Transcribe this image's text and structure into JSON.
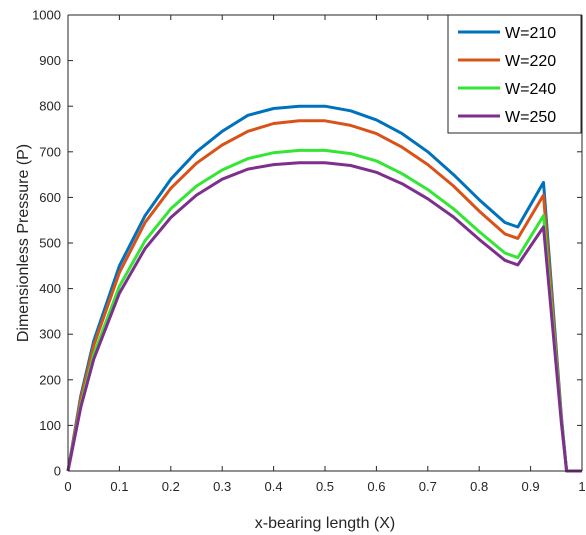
{
  "chart_data": {
    "type": "line",
    "title": "",
    "xlabel": "x-bearing length (X)",
    "ylabel": "Dimensionless Pressure (P)",
    "xlim": [
      0,
      1
    ],
    "ylim": [
      0,
      1000
    ],
    "xticks": [
      0,
      0.1,
      0.2,
      0.3,
      0.4,
      0.5,
      0.6,
      0.7,
      0.8,
      0.9,
      1
    ],
    "xtick_labels": [
      "0",
      "0.1",
      "0.2",
      "0.3",
      "0.4",
      "0.5",
      "0.6",
      "0.7",
      "0.8",
      "0.9",
      "1"
    ],
    "yticks": [
      0,
      100,
      200,
      300,
      400,
      500,
      600,
      700,
      800,
      900,
      1000
    ],
    "ytick_labels": [
      "0",
      "100",
      "200",
      "300",
      "400",
      "500",
      "600",
      "700",
      "800",
      "900",
      "1000"
    ],
    "grid": false,
    "legend_position": "top-right",
    "x": [
      0,
      0.025,
      0.05,
      0.1,
      0.15,
      0.2,
      0.25,
      0.3,
      0.35,
      0.4,
      0.45,
      0.5,
      0.55,
      0.6,
      0.65,
      0.7,
      0.75,
      0.8,
      0.85,
      0.875,
      0.925,
      0.96,
      0.97,
      0.99,
      1
    ],
    "series": [
      {
        "name": "W=210",
        "color": "#0072BD",
        "values": [
          0,
          165,
          285,
          450,
          560,
          640,
          700,
          745,
          780,
          795,
          800,
          800,
          790,
          770,
          740,
          700,
          650,
          595,
          545,
          535,
          633,
          120,
          0,
          0,
          0
        ]
      },
      {
        "name": "W=220",
        "color": "#D95319",
        "values": [
          0,
          158,
          275,
          435,
          545,
          620,
          675,
          715,
          745,
          762,
          768,
          768,
          758,
          740,
          710,
          672,
          625,
          570,
          520,
          510,
          605,
          115,
          0,
          0,
          0
        ]
      },
      {
        "name": "W=240",
        "color": "#33E633",
        "values": [
          0,
          145,
          255,
          405,
          505,
          575,
          625,
          660,
          685,
          698,
          703,
          703,
          696,
          680,
          652,
          617,
          575,
          525,
          478,
          468,
          560,
          110,
          0,
          0,
          0
        ]
      },
      {
        "name": "W=250",
        "color": "#7E2F8E",
        "values": [
          0,
          140,
          245,
          390,
          488,
          556,
          605,
          640,
          662,
          672,
          676,
          676,
          670,
          655,
          630,
          597,
          557,
          508,
          462,
          452,
          535,
          105,
          0,
          0,
          0
        ]
      }
    ]
  }
}
